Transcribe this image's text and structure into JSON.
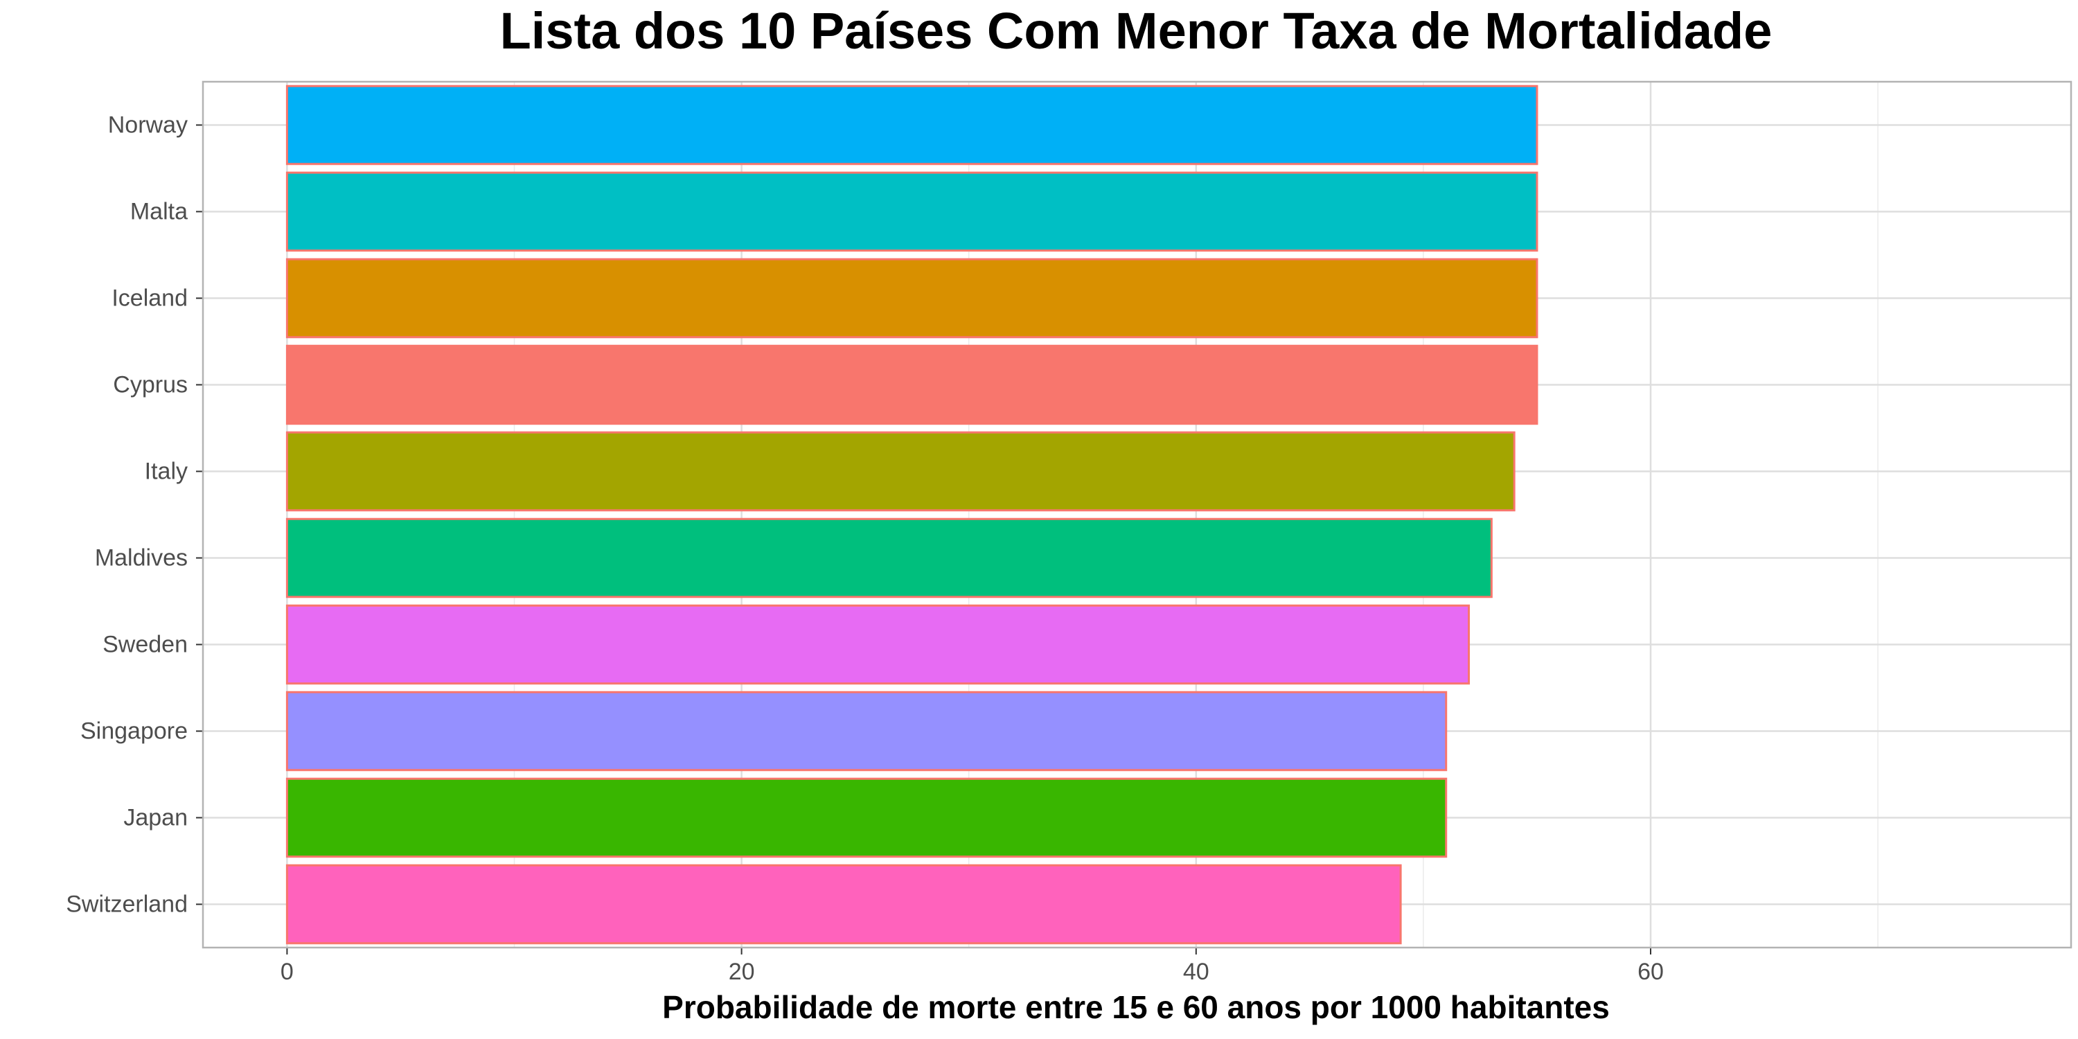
{
  "chart_data": {
    "type": "bar",
    "orientation": "horizontal",
    "title": "Lista dos 10 Países Com Menor Taxa de Mortalidade",
    "xlabel": "Probabilidade de morte entre 15 e 60 anos por 1000 habitantes",
    "ylabel": "",
    "categories": [
      "Norway",
      "Malta",
      "Iceland",
      "Cyprus",
      "Italy",
      "Maldives",
      "Sweden",
      "Singapore",
      "Japan",
      "Switzerland"
    ],
    "values": [
      55,
      55,
      55,
      55,
      54,
      53,
      52,
      51,
      51,
      49
    ],
    "colors": [
      "#00B0F6",
      "#00BFC4",
      "#D89000",
      "#F8766D",
      "#A3A500",
      "#00BF7D",
      "#E76BF3",
      "#9590FF",
      "#39B600",
      "#FF62BC"
    ],
    "bar_outline_color": "#F8766D",
    "xlim": [
      -3.7,
      78.5
    ],
    "xticks": [
      0,
      20,
      40,
      60
    ],
    "xtick_labels": [
      "0",
      "20",
      "40",
      "60"
    ],
    "grid": true,
    "legend": "none"
  }
}
